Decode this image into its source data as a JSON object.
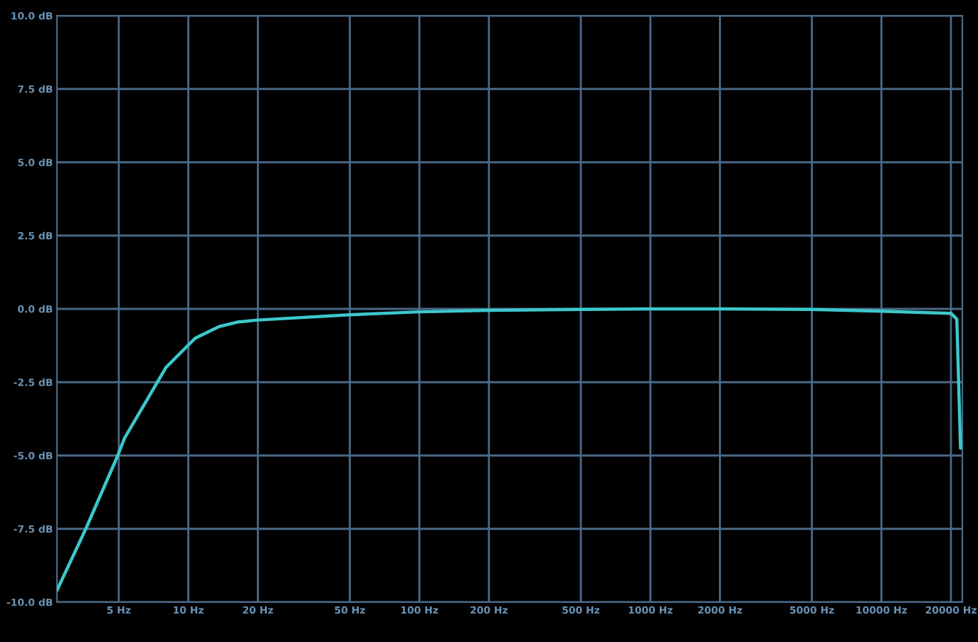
{
  "chart_data": {
    "type": "line",
    "log": "x",
    "grid": true,
    "marker": "none",
    "line_style": "solid",
    "xlim": [
      2.7,
      22400
    ],
    "ylim": [
      -10,
      10
    ],
    "xticks": [
      {
        "value": 5,
        "label": "5 Hz"
      },
      {
        "value": 10,
        "label": "10 Hz"
      },
      {
        "value": 20,
        "label": "20 Hz"
      },
      {
        "value": 50,
        "label": "50 Hz"
      },
      {
        "value": 100,
        "label": "100 Hz"
      },
      {
        "value": 200,
        "label": "200 Hz"
      },
      {
        "value": 500,
        "label": "500 Hz"
      },
      {
        "value": 1000,
        "label": "1000 Hz"
      },
      {
        "value": 2000,
        "label": "2000 Hz"
      },
      {
        "value": 5000,
        "label": "5000 Hz"
      },
      {
        "value": 10000,
        "label": "10000 Hz"
      },
      {
        "value": 20000,
        "label": "20000 Hz"
      }
    ],
    "yticks": [
      {
        "value": -10,
        "label": "-10.0 dB"
      },
      {
        "value": -7.5,
        "label": "-7.5 dB"
      },
      {
        "value": -5,
        "label": "-5.0 dB"
      },
      {
        "value": -2.5,
        "label": "-2.5 dB"
      },
      {
        "value": 0,
        "label": "0.0 dB"
      },
      {
        "value": 2.5,
        "label": "2.5 dB"
      },
      {
        "value": 5,
        "label": "5.0 dB"
      },
      {
        "value": 7.5,
        "label": "7.5 dB"
      },
      {
        "value": 10,
        "label": "10.0 dB"
      }
    ],
    "series": [
      {
        "color": "#3cc8cc",
        "x": [
          2.7,
          3.6,
          4.95,
          5.3,
          8.0,
          10.7,
          13.6,
          16.3,
          20,
          50,
          100,
          200,
          500,
          1000,
          2000,
          5000,
          10000,
          15000,
          20000,
          21200,
          22000
        ],
        "values": [
          -9.6,
          -7.5,
          -5.0,
          -4.4,
          -2.0,
          -1.0,
          -0.6,
          -0.45,
          -0.38,
          -0.2,
          -0.1,
          -0.05,
          -0.02,
          0,
          0,
          -0.02,
          -0.08,
          -0.12,
          -0.15,
          -0.35,
          -4.75
        ]
      }
    ]
  }
}
